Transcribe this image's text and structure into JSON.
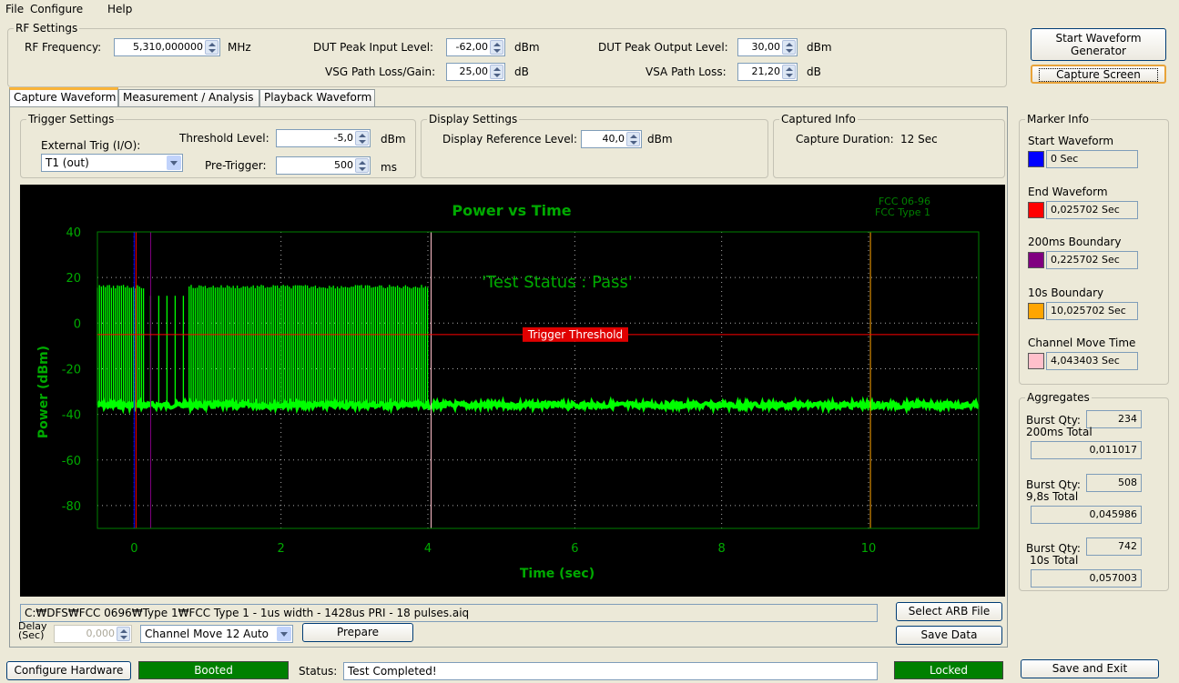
{
  "menu": {
    "file": "File",
    "configure": "Configure",
    "help": "Help"
  },
  "rf": {
    "group_label": "RF Settings",
    "freq_label": "RF Frequency:",
    "freq_value": "5,310,000000",
    "freq_unit": "MHz",
    "dut_in_label": "DUT Peak Input Level:",
    "dut_in_value": "-62,00",
    "dut_in_unit": "dBm",
    "vsg_label": "VSG Path Loss/Gain:",
    "vsg_value": "25,00",
    "vsg_unit": "dB",
    "dut_out_label": "DUT Peak Output Level:",
    "dut_out_value": "30,00",
    "dut_out_unit": "dBm",
    "vsa_label": "VSA Path Loss:",
    "vsa_value": "21,20",
    "vsa_unit": "dB"
  },
  "buttons": {
    "start_waveform": "Start Waveform Generator",
    "capture_screen": "Capture Screen",
    "select_arb": "Select ARB File",
    "save_data": "Save Data",
    "prepare": "Prepare",
    "configure_hw": "Configure Hardware",
    "save_exit": "Save and Exit"
  },
  "tabs": [
    "Capture Waveform",
    "Measurement / Analysis",
    "Playback Waveform"
  ],
  "trigger": {
    "group_label": "Trigger Settings",
    "ext_label": "External Trig (I/O):",
    "ext_value": "T1 (out)",
    "threshold_label": "Threshold Level:",
    "threshold_value": "-5,0",
    "threshold_unit": "dBm",
    "pretrig_label": "Pre-Trigger:",
    "pretrig_value": "500",
    "pretrig_unit": "ms"
  },
  "display": {
    "group_label": "Display Settings",
    "ref_label": "Display Reference Level:",
    "ref_value": "40,0",
    "ref_unit": "dBm"
  },
  "captured": {
    "group_label": "Captured Info",
    "duration_label": "Capture Duration:",
    "duration_value": "12 Sec"
  },
  "marker": {
    "group_label": "Marker Info",
    "items": [
      {
        "label": "Start Waveform",
        "value": "0 Sec",
        "color": "#0000ff"
      },
      {
        "label": "End Waveform",
        "value": "0,025702 Sec",
        "color": "#ff0000"
      },
      {
        "label": "200ms Boundary",
        "value": "0,225702 Sec",
        "color": "#800080"
      },
      {
        "label": "10s Boundary",
        "value": "10,025702 Sec",
        "color": "#ffa500"
      },
      {
        "label": "Channel Move Time",
        "value": "4,043403 Sec",
        "color": "#ffc0cb"
      }
    ]
  },
  "aggregates": {
    "group_label": "Aggregates",
    "b1_label": "Burst Qty:",
    "b1_value": "234",
    "t1_label": "200ms Total",
    "t1_value": "0,011017",
    "b2_label": "Burst Qty:",
    "b2_value": "508",
    "t2_label": "9,8s Total",
    "t2_value": "0,045986",
    "b3_label": "Burst Qty:",
    "b3_value": "742",
    "t3_label": "10s Total",
    "t3_value": "0,057003"
  },
  "file_path": "C:₩DFS₩FCC 0696₩Type 1₩FCC Type 1 - 1us width - 1428us PRI - 18 pulses.aiq",
  "delay": {
    "label": "Delay (Sec)",
    "value": "0,000"
  },
  "channel_move": "Channel Move 12 Auto",
  "status": {
    "booted": "Booted",
    "label": "Status:",
    "text": "Test Completed!",
    "locked": "Locked"
  },
  "chart_data": {
    "type": "line",
    "title": "Power vs Time",
    "corner_text": [
      "FCC 06-96",
      "FCC Type 1"
    ],
    "status_text": "'Test Status : Pass'",
    "threshold_label": "Trigger Threshold",
    "xlabel": "Time (sec)",
    "ylabel": "Power (dBm)",
    "xlim": [
      -0.5,
      11.5
    ],
    "ylim": [
      -90,
      40
    ],
    "xticks": [
      0,
      2,
      4,
      6,
      8,
      10
    ],
    "yticks": [
      40,
      20,
      0,
      -20,
      -40,
      -60,
      -80
    ],
    "grid": true,
    "threshold_dbm": -5,
    "noise_floor_dbm": -36,
    "pulse_level_dbm": 16,
    "pulse_segments": [
      [
        -0.5,
        0.15
      ],
      [
        0.75,
        4.0
      ]
    ],
    "markers": [
      {
        "name": "Start Waveform",
        "x": 0,
        "color": "#0000ff"
      },
      {
        "name": "End Waveform",
        "x": 0.025702,
        "color": "#ff0000"
      },
      {
        "name": "200ms Boundary",
        "x": 0.225702,
        "color": "#800080"
      },
      {
        "name": "Channel Move Time",
        "x": 4.043403,
        "color": "#ffc0cb"
      },
      {
        "name": "10s Boundary",
        "x": 10.025702,
        "color": "#ffa500"
      }
    ],
    "colors": {
      "trace": "#00ff00",
      "axis_text": "#00aa00",
      "frame": "#008000",
      "threshold": "#ff0000"
    }
  }
}
